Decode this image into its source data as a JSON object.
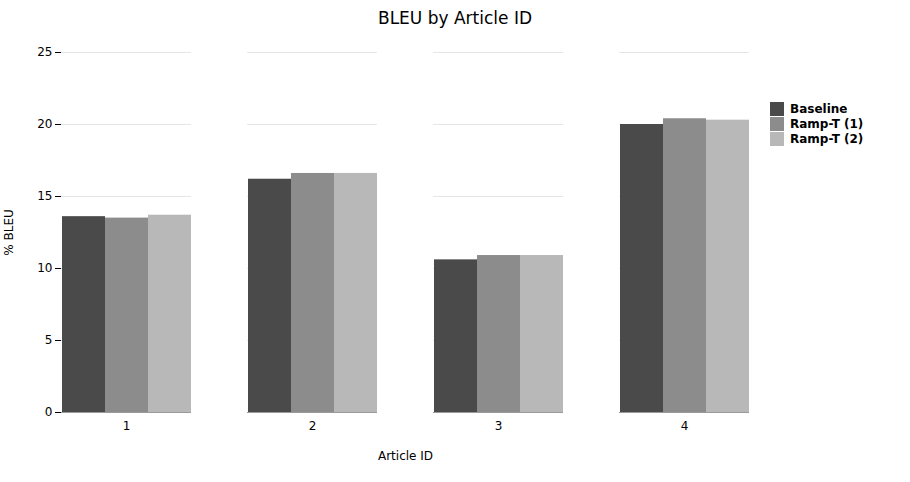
{
  "chart_data": {
    "type": "bar",
    "title": "BLEU by Article ID",
    "xlabel": "Article ID",
    "ylabel": "% BLEU",
    "categories": [
      "1",
      "2",
      "3",
      "4"
    ],
    "series": [
      {
        "name": "Baseline",
        "color": "#4a4a4a",
        "values": [
          13.6,
          16.2,
          10.6,
          20.0
        ]
      },
      {
        "name": "Ramp-T (1)",
        "color": "#8c8c8c",
        "values": [
          13.5,
          16.6,
          10.9,
          20.4
        ]
      },
      {
        "name": "Ramp-T (2)",
        "color": "#b8b8b8",
        "values": [
          13.7,
          16.6,
          10.9,
          20.3
        ]
      }
    ],
    "ylim": [
      0,
      25
    ],
    "yticks": [
      0,
      5,
      10,
      15,
      20,
      25
    ],
    "grid": true,
    "legend": "right"
  }
}
